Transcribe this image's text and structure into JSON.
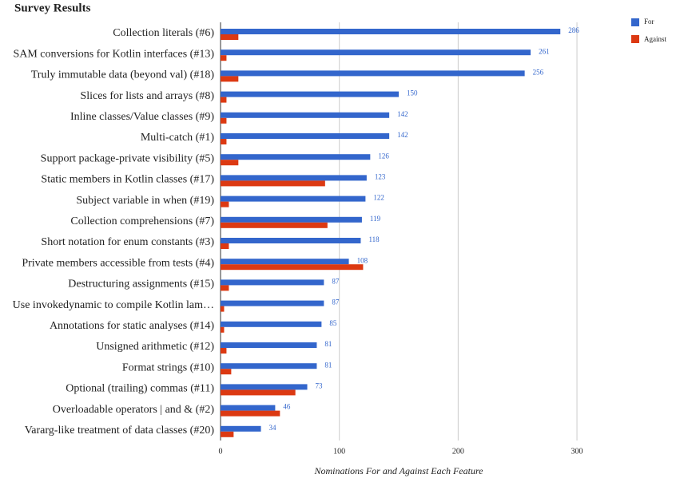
{
  "chart_data": {
    "type": "bar",
    "orientation": "horizontal",
    "title": "Survey Results",
    "x_label": "Nominations For and Against Each Feature",
    "categories": [
      "Collection literals (#6)",
      "SAM conversions for Kotlin interfaces (#13)",
      "Truly immutable data (beyond val) (#18)",
      "Slices for lists and arrays (#8)",
      "Inline classes/Value classes (#9)",
      "Multi-catch (#1)",
      "Support package-private visibility (#5)",
      "Static members in Kotlin classes (#17)",
      "Subject variable in when (#19)",
      "Collection comprehensions (#7)",
      "Short notation for enum constants (#3)",
      "Private members accessible from tests (#4)",
      "Destructuring assignments (#15)",
      "Use invokedynamic to compile Kotlin lam…",
      "Annotations for static analyses (#14)",
      "Unsigned arithmetic (#12)",
      "Format strings (#10)",
      "Optional (trailing) commas (#11)",
      "Overloadable operators | and & (#2)",
      "Vararg-like treatment of data classes (#20)"
    ],
    "series": [
      {
        "name": "For",
        "color": "#3366cc",
        "values": [
          286,
          261,
          256,
          150,
          142,
          142,
          126,
          123,
          122,
          119,
          118,
          108,
          87,
          87,
          85,
          81,
          81,
          73,
          46,
          34
        ]
      },
      {
        "name": "Against",
        "color": "#dc3912",
        "values": [
          15,
          5,
          15,
          5,
          5,
          5,
          15,
          88,
          7,
          90,
          7,
          120,
          7,
          3,
          3,
          5,
          9,
          63,
          50,
          11
        ]
      }
    ],
    "xlim": [
      0,
      380
    ],
    "xticks": [
      0,
      100,
      200,
      300
    ],
    "grid": true,
    "legend": "top-right",
    "value_labels_series": "For"
  }
}
